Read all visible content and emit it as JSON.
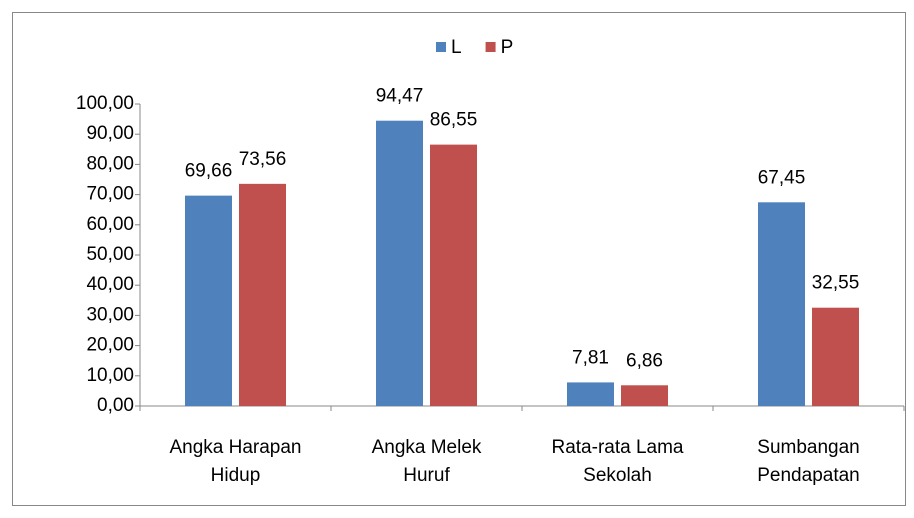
{
  "chart_data": {
    "type": "bar",
    "categories": [
      [
        "Angka Harapan",
        "Hidup"
      ],
      [
        "Angka Melek",
        "Huruf"
      ],
      [
        "Rata-rata Lama",
        "Sekolah"
      ],
      [
        "Sumbangan",
        "Pendapatan"
      ]
    ],
    "series": [
      {
        "name": "L",
        "color": "#4f81bd",
        "values": [
          69.66,
          94.47,
          7.81,
          67.45
        ],
        "value_labels": [
          "69,66",
          "94,47",
          "7,81",
          "67,45"
        ]
      },
      {
        "name": "P",
        "color": "#c0504d",
        "values": [
          73.56,
          86.55,
          6.86,
          32.55
        ],
        "value_labels": [
          "73,56",
          "86,55",
          "6,86",
          "32,55"
        ]
      }
    ],
    "ylim": [
      0,
      100
    ],
    "yticks": [
      {
        "value": 0,
        "label": "0,00"
      },
      {
        "value": 10,
        "label": "10,00"
      },
      {
        "value": 20,
        "label": "20,00"
      },
      {
        "value": 30,
        "label": "30,00"
      },
      {
        "value": 40,
        "label": "40,00"
      },
      {
        "value": 50,
        "label": "50,00"
      },
      {
        "value": 60,
        "label": "60,00"
      },
      {
        "value": 70,
        "label": "70,00"
      },
      {
        "value": 80,
        "label": "80,00"
      },
      {
        "value": 90,
        "label": "90,00"
      },
      {
        "value": 100,
        "label": "100,00"
      }
    ],
    "grid": false,
    "legend": "top"
  }
}
